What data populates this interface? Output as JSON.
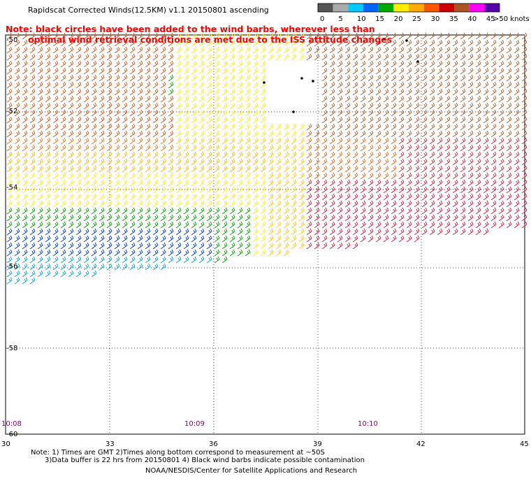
{
  "title": "Rapidscat Corrected Winds(12.5KM) v1.1 20150801 ascending",
  "note": {
    "line1": "Note: black circles have been added to the wind barbs, wherever less than",
    "line2": "optimal wind retrieval conditions are met due to the ISS attitude changes"
  },
  "legend": {
    "ticks": [
      "0",
      "5",
      "10",
      "15",
      "20",
      "25",
      "30",
      "35",
      "40",
      "45"
    ],
    "last_label": ">50 knots",
    "colors": [
      "#555555",
      "#aaaaaa",
      "#00ccff",
      "#0066ff",
      "#00aa00",
      "#ffee00",
      "#ffaa00",
      "#ff5500",
      "#cc0000",
      "#aa5522",
      "#ff00ff",
      "#5500aa"
    ]
  },
  "axes": {
    "lat_labels": [
      "-50",
      "-52",
      "-54",
      "-56",
      "-58",
      "-60"
    ],
    "lon_labels": [
      "30",
      "33",
      "36",
      "39",
      "42",
      "45"
    ]
  },
  "times": [
    "10:08",
    "10:09",
    "10:10"
  ],
  "footnotes": {
    "line1": "Note: 1) Times are GMT 2)Times along bottom correspond to measurement at ~50S",
    "line2": "3)Data buffer is 22 hrs from 20150801 4) Black wind barbs indicate possible contamination"
  },
  "credit": "NOAA/NESDIS/Center for Satellite Applications and Research",
  "map_data": {
    "lon_range": [
      30,
      45
    ],
    "lat_range": [
      -60,
      -50
    ],
    "speed_colors": {
      "10-15": "#0055ff",
      "15-20": "#00aa00",
      "20-25": "#ffee00",
      "25-30": "#ff9900",
      "30-35": "#dd2244",
      "35-40": "#aa6633"
    }
  }
}
